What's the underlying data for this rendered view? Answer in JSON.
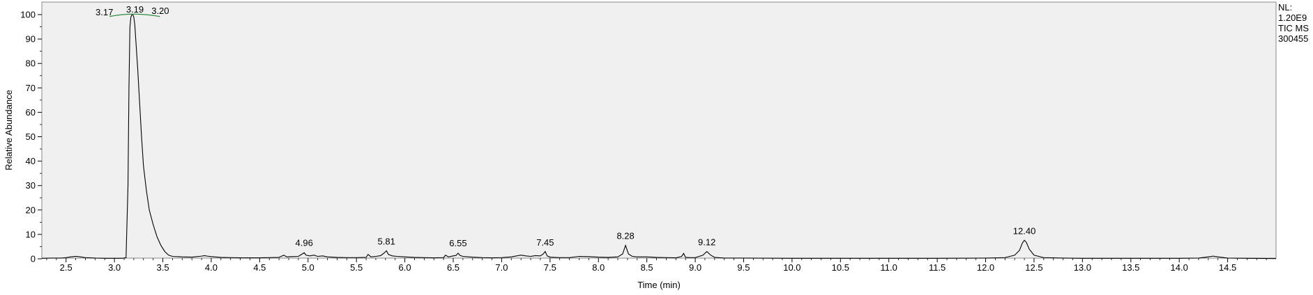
{
  "chart_data": {
    "type": "line",
    "xlabel": "Time (min)",
    "ylabel": "Relative Abundance",
    "xlim": [
      2.25,
      15.0
    ],
    "ylim": [
      0,
      100
    ],
    "x_ticks": [
      2.5,
      3.0,
      3.5,
      4.0,
      4.5,
      5.0,
      5.5,
      6.0,
      6.5,
      7.0,
      7.5,
      8.0,
      8.5,
      9.0,
      9.5,
      10.0,
      10.5,
      11.0,
      11.5,
      12.0,
      12.5,
      13.0,
      13.5,
      14.0,
      14.5
    ],
    "y_ticks": [
      0,
      10,
      20,
      30,
      40,
      50,
      60,
      70,
      80,
      90,
      100
    ],
    "info_lines": [
      "NL:",
      "1.20E9",
      "TIC  MS",
      "300455"
    ],
    "background_color": "#f0f0f0",
    "trace_color": "#000000",
    "baseline_marker_color": "#2e8b3e",
    "peak_labels": [
      {
        "text": "3.17",
        "x": 3.17,
        "y": 99
      },
      {
        "text": "3.19",
        "x": 3.19,
        "y": 100
      },
      {
        "text": "3.20",
        "x": 3.2,
        "y": 99
      },
      {
        "text": "4.96",
        "x": 4.96,
        "y": 3
      },
      {
        "text": "5.81",
        "x": 5.81,
        "y": 3.5
      },
      {
        "text": "6.55",
        "x": 6.55,
        "y": 2.8
      },
      {
        "text": "7.45",
        "x": 7.45,
        "y": 3.2
      },
      {
        "text": "8.28",
        "x": 8.28,
        "y": 5.8
      },
      {
        "text": "9.12",
        "x": 9.12,
        "y": 3.3
      },
      {
        "text": "12.40",
        "x": 12.4,
        "y": 7.8
      }
    ],
    "series": [
      {
        "x": [
          2.25,
          2.35,
          2.45,
          2.5,
          2.55,
          2.6,
          2.65,
          2.7,
          2.8,
          2.9,
          3.0,
          3.08,
          3.12,
          3.14,
          3.15,
          3.16,
          3.17,
          3.18,
          3.19,
          3.2,
          3.21,
          3.22,
          3.24,
          3.26,
          3.28,
          3.3,
          3.33,
          3.36,
          3.4,
          3.44,
          3.48,
          3.52,
          3.56,
          3.6,
          3.7,
          3.8,
          3.9,
          3.93,
          3.96,
          4.0,
          4.1,
          4.2,
          4.3,
          4.4,
          4.5,
          4.6,
          4.7,
          4.75,
          4.78,
          4.82,
          4.9,
          4.94,
          4.96,
          4.98,
          5.02,
          5.06,
          5.1,
          5.15,
          5.2,
          5.3,
          5.4,
          5.5,
          5.6,
          5.62,
          5.65,
          5.7,
          5.75,
          5.79,
          5.81,
          5.83,
          5.87,
          5.92,
          6.0,
          6.1,
          6.2,
          6.3,
          6.4,
          6.42,
          6.45,
          6.5,
          6.53,
          6.55,
          6.57,
          6.6,
          6.7,
          6.8,
          6.9,
          7.0,
          7.1,
          7.2,
          7.25,
          7.3,
          7.35,
          7.4,
          7.43,
          7.45,
          7.47,
          7.5,
          7.6,
          7.7,
          7.8,
          7.9,
          8.0,
          8.1,
          8.2,
          8.25,
          8.28,
          8.31,
          8.35,
          8.4,
          8.5,
          8.6,
          8.7,
          8.8,
          8.86,
          8.88,
          8.9,
          8.95,
          9.0,
          9.08,
          9.12,
          9.16,
          9.2,
          9.3,
          9.5,
          10.0,
          10.5,
          11.0,
          11.5,
          12.0,
          12.2,
          12.3,
          12.35,
          12.38,
          12.4,
          12.42,
          12.45,
          12.5,
          12.6,
          12.8,
          13.0,
          13.5,
          14.0,
          14.2,
          14.3,
          14.35,
          14.4,
          14.5,
          14.7,
          15.0
        ],
        "y": [
          0.2,
          0.3,
          0.3,
          0.5,
          0.8,
          1.0,
          0.8,
          0.5,
          0.3,
          0.2,
          0.2,
          0.2,
          0.5,
          30,
          70,
          95,
          99,
          100,
          100,
          99,
          96,
          90,
          78,
          64,
          50,
          38,
          28,
          20,
          14,
          9,
          5.5,
          3,
          1.5,
          1.0,
          0.8,
          0.7,
          1.1,
          1.3,
          1.1,
          0.9,
          0.6,
          0.5,
          0.4,
          0.4,
          0.4,
          0.5,
          0.6,
          1.5,
          0.8,
          0.9,
          1.0,
          2.0,
          2.5,
          1.5,
          1.2,
          1.5,
          1.0,
          1.2,
          0.8,
          0.6,
          0.5,
          0.5,
          0.6,
          1.8,
          0.8,
          1.0,
          1.3,
          2.5,
          3.3,
          1.8,
          1.2,
          1.0,
          0.8,
          0.6,
          0.5,
          0.4,
          0.5,
          1.5,
          0.8,
          1.2,
          1.4,
          2.3,
          1.4,
          1.0,
          0.7,
          0.5,
          0.4,
          0.5,
          0.8,
          1.5,
          1.2,
          1.0,
          1.3,
          1.2,
          2.0,
          3.0,
          1.2,
          0.7,
          0.5,
          0.5,
          1.0,
          0.9,
          0.7,
          0.6,
          0.8,
          2.0,
          5.5,
          2.0,
          1.0,
          0.8,
          0.8,
          0.6,
          0.5,
          0.4,
          1.0,
          2.2,
          0.6,
          0.5,
          0.5,
          1.5,
          3.0,
          1.5,
          0.6,
          0.3,
          0.3,
          0.2,
          0.2,
          0.2,
          0.2,
          0.3,
          0.5,
          1.5,
          3.5,
          6.5,
          7.6,
          6.8,
          4.0,
          1.5,
          0.5,
          0.3,
          0.2,
          0.2,
          0.2,
          0.3,
          0.8,
          1.1,
          0.8,
          0.3,
          0.2,
          0.1
        ]
      }
    ]
  }
}
